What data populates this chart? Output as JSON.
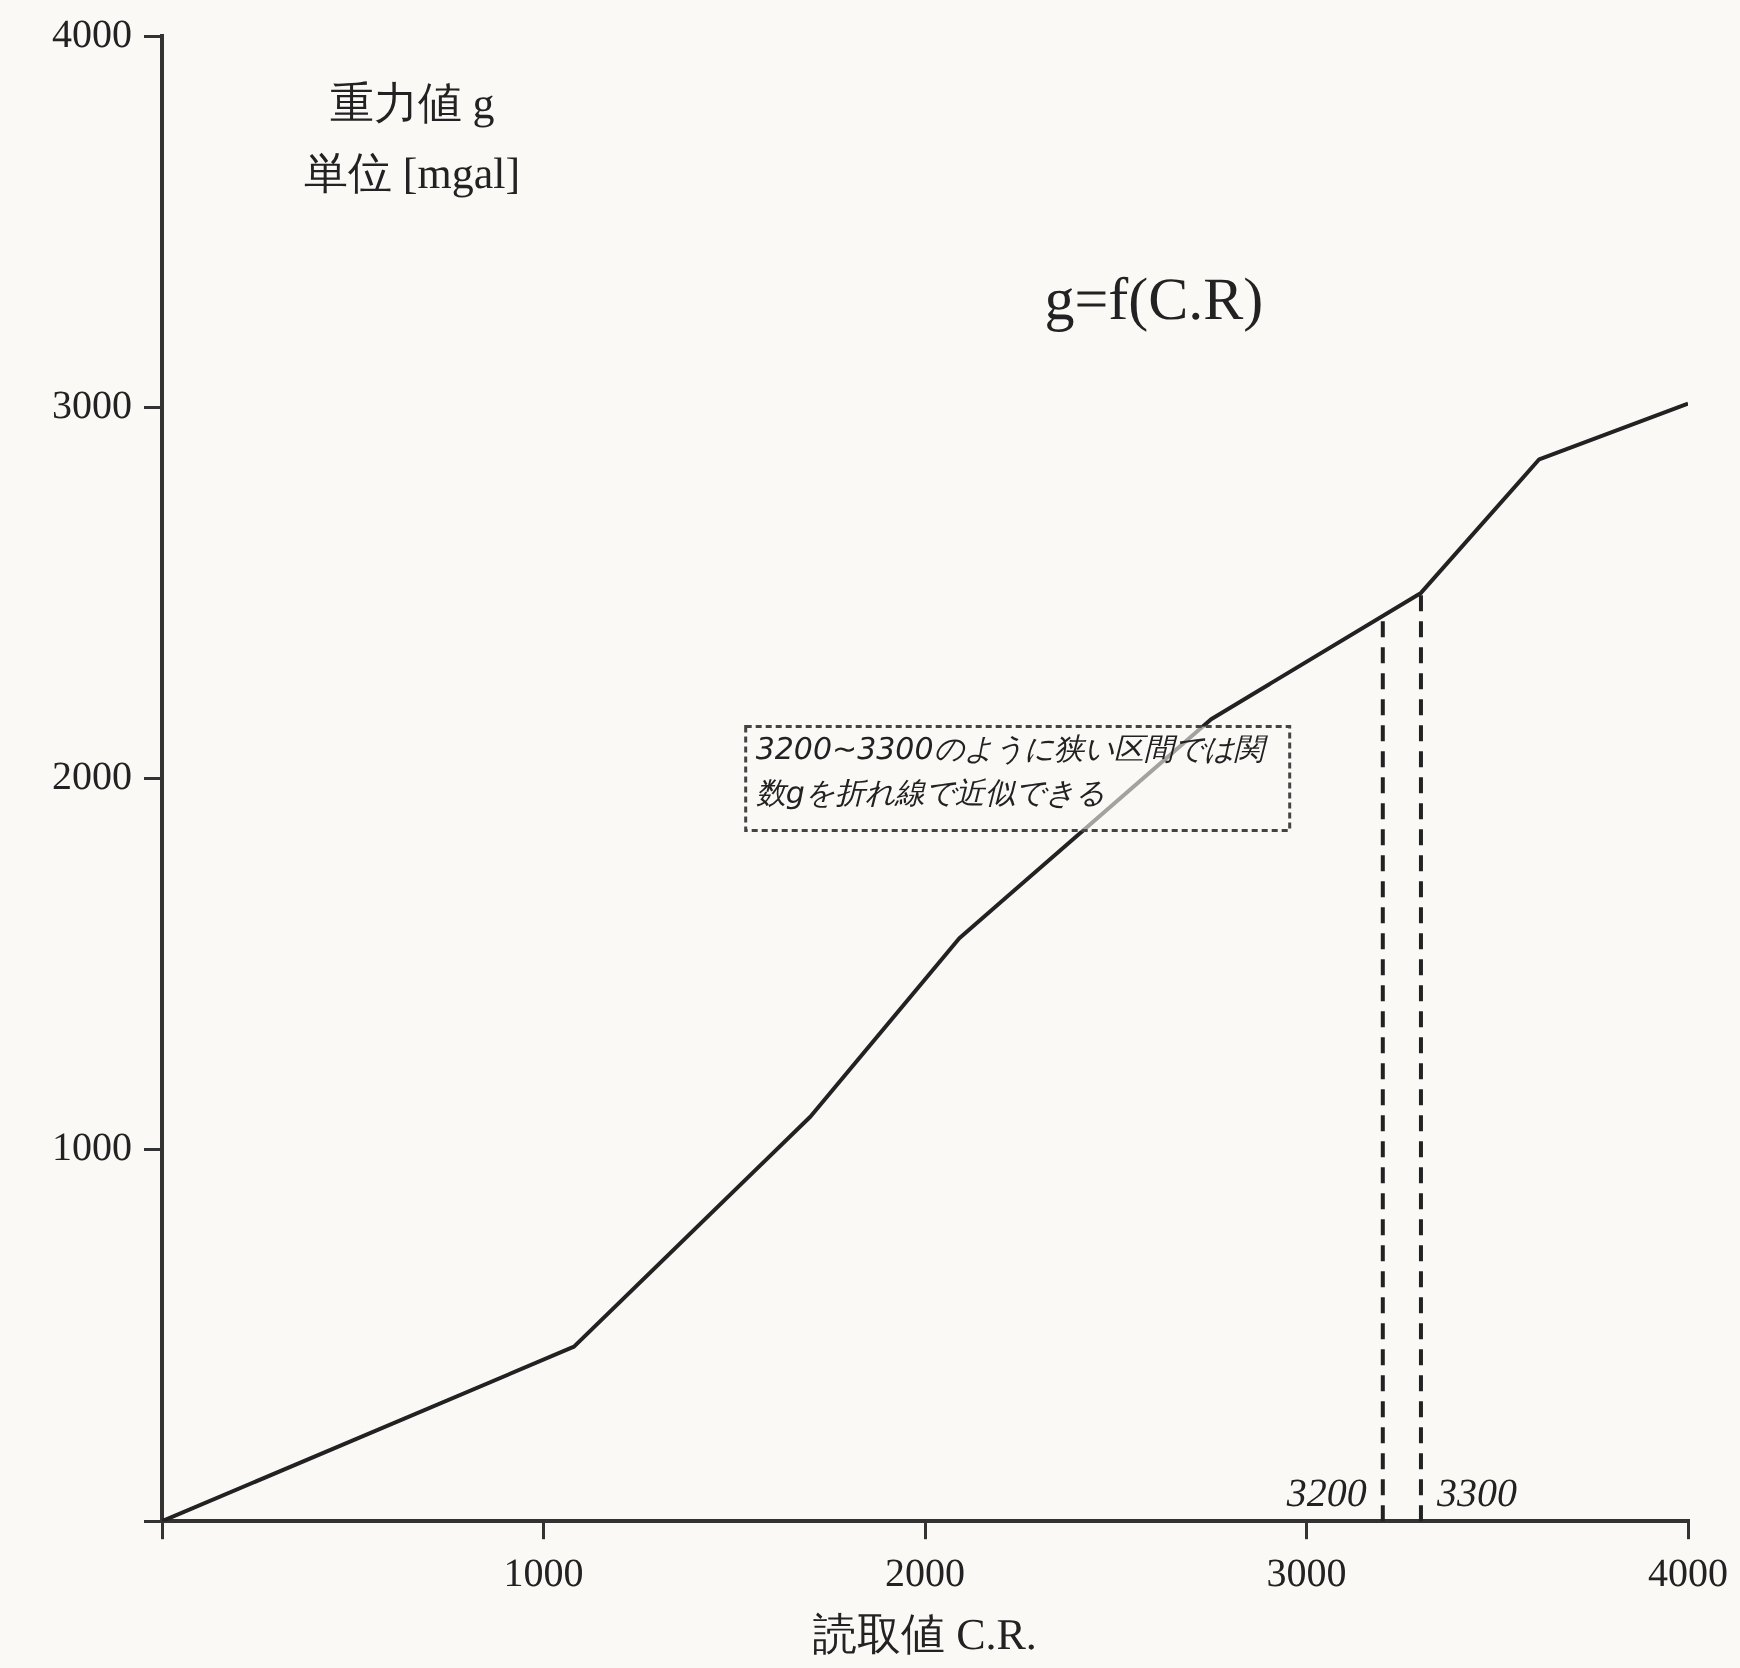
{
  "chart_data": {
    "type": "line",
    "xlabel": "読取値 C.R.",
    "ylabel": "重力値 g\n単位 [mgal]",
    "x": [
      0,
      1080,
      1700,
      2090,
      2750,
      3300,
      3610,
      4000
    ],
    "series": [
      {
        "color": "#222222",
        "values": [
          0,
          470,
          1090,
          1570,
          2160,
          2500,
          2860,
          3010
        ]
      }
    ],
    "xlim": [
      0,
      4000
    ],
    "xticks": [
      {
        "value": 0,
        "label": null
      },
      1000,
      2000,
      3000,
      4000
    ],
    "ylim": [
      0,
      4000
    ],
    "yticks": [
      {
        "value": 0,
        "label": null
      },
      1000,
      2000,
      3000,
      4000
    ],
    "grid": false,
    "legend": false,
    "marker": "none",
    "line_style": "solid",
    "ref_lines": [
      {
        "axis": "x",
        "value": 3200,
        "label": "3200",
        "line_style": "dashed",
        "color": "#222222"
      },
      {
        "axis": "x",
        "value": 3300,
        "label": "3300",
        "line_style": "dashed",
        "color": "#222222"
      }
    ],
    "annotations": [
      "g=f(C.R)",
      "3200~3300のように狭い区間では関数gを折れ線で近似できる"
    ]
  }
}
